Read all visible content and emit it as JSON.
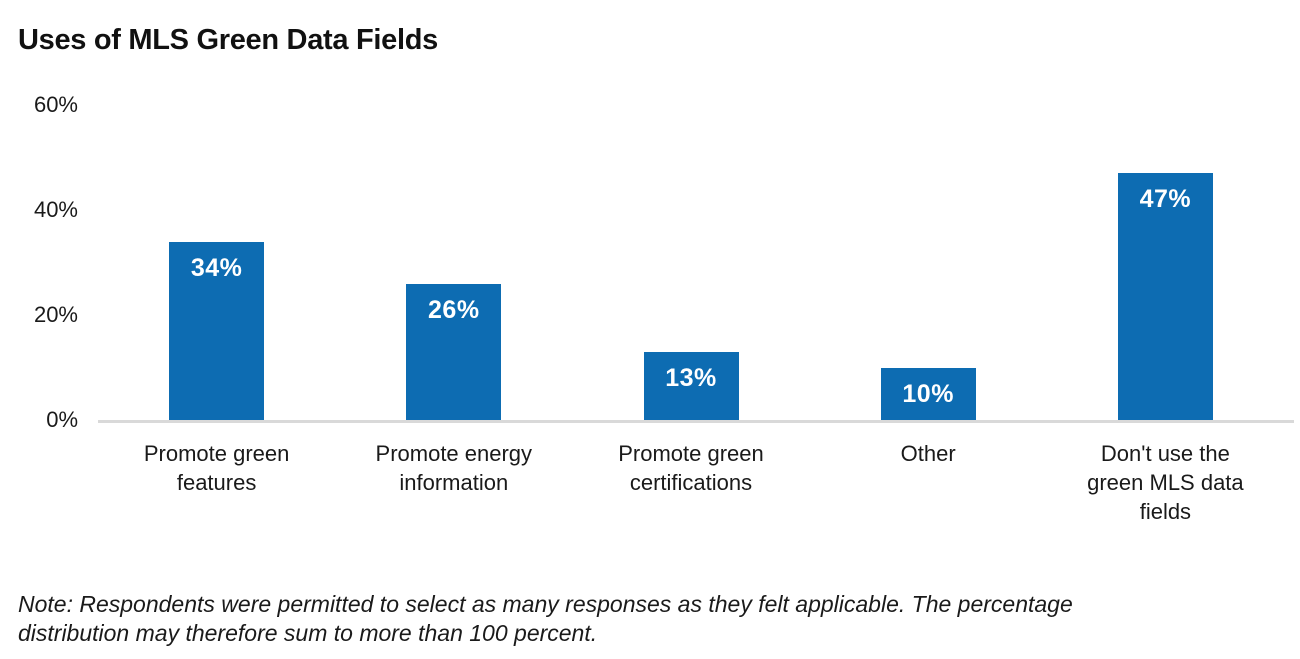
{
  "title": "Uses of MLS Green Data Fields",
  "note": "Note: Respondents were permitted to select as many responses as they felt applicable. The percentage\ndistribution may therefore sum to more than 100 percent.",
  "colors": {
    "bar": "#0d6cb2",
    "bar_label": "#ffffff",
    "axis_line": "#d9d9d9",
    "text": "#1a1a1a",
    "title_text": "#111111",
    "background": "#ffffff"
  },
  "chart_data": {
    "type": "bar",
    "title": "Uses of MLS Green Data Fields",
    "categories": [
      "Promote green features",
      "Promote energy information",
      "Promote green certifications",
      "Other",
      "Don't use the green MLS data fields"
    ],
    "category_lines": [
      [
        "Promote green",
        "features"
      ],
      [
        "Promote energy",
        "information"
      ],
      [
        "Promote green",
        "certifications"
      ],
      [
        "Other"
      ],
      [
        "Don't use the",
        "green MLS data",
        "fields"
      ]
    ],
    "values": [
      34,
      26,
      13,
      10,
      47
    ],
    "value_labels": [
      "34%",
      "26%",
      "13%",
      "10%",
      "47%"
    ],
    "xlabel": "",
    "ylabel": "",
    "ylim": [
      0,
      60
    ],
    "y_ticks": [
      0,
      20,
      40,
      60
    ],
    "y_tick_labels": [
      "0%",
      "20%",
      "40%",
      "60%"
    ],
    "grid": false,
    "legend": false,
    "bar_label_position": "inside-top"
  }
}
